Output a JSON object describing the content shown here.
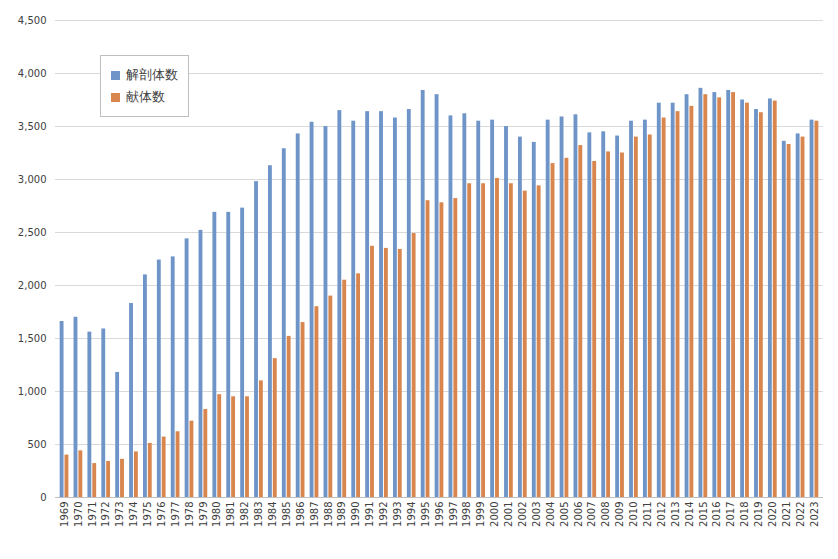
{
  "chart_data": {
    "type": "bar",
    "categories": [
      "1969",
      "1970",
      "1971",
      "1972",
      "1973",
      "1974",
      "1975",
      "1976",
      "1977",
      "1978",
      "1979",
      "1980",
      "1981",
      "1982",
      "1983",
      "1984",
      "1985",
      "1986",
      "1987",
      "1988",
      "1989",
      "1990",
      "1991",
      "1992",
      "1993",
      "1994",
      "1995",
      "1996",
      "1997",
      "1998",
      "1999",
      "2000",
      "2001",
      "2002",
      "2003",
      "2004",
      "2005",
      "2006",
      "2007",
      "2008",
      "2009",
      "2010",
      "2011",
      "2012",
      "2013",
      "2014",
      "2015",
      "2016",
      "2017",
      "2018",
      "2019",
      "2020",
      "2021",
      "2022",
      "2023"
    ],
    "series": [
      {
        "name": "解剖体数",
        "color": "#6f95c8",
        "values": [
          1660,
          1700,
          1560,
          1590,
          1180,
          1830,
          2100,
          2240,
          2270,
          2440,
          2520,
          2690,
          2690,
          2730,
          2980,
          3130,
          3290,
          3430,
          3540,
          3500,
          3650,
          3550,
          3640,
          3640,
          3580,
          3660,
          3840,
          3800,
          3600,
          3620,
          3550,
          3560,
          3500,
          3400,
          3350,
          3560,
          3590,
          3610,
          3440,
          3450,
          3410,
          3550,
          3560,
          3720,
          3720,
          3800,
          3860,
          3820,
          3840,
          3750,
          3660,
          3760,
          3360,
          3430,
          3560
        ]
      },
      {
        "name": "献体数",
        "color": "#d8864e",
        "values": [
          400,
          440,
          320,
          340,
          360,
          430,
          510,
          570,
          620,
          720,
          830,
          970,
          950,
          950,
          1100,
          1310,
          1520,
          1650,
          1800,
          1900,
          2050,
          2110,
          2370,
          2350,
          2340,
          2490,
          2800,
          2780,
          2820,
          2960,
          2960,
          3010,
          2960,
          2890,
          2940,
          3150,
          3200,
          3320,
          3170,
          3260,
          3250,
          3400,
          3420,
          3580,
          3640,
          3690,
          3800,
          3770,
          3820,
          3720,
          3630,
          3740,
          3330,
          3400,
          3550
        ]
      }
    ],
    "ylim": [
      0,
      4500
    ],
    "yticks": [
      0,
      500,
      {
        "value": 1000,
        "label": "1,000"
      },
      {
        "value": 1500,
        "label": "1,500"
      },
      {
        "value": 2000,
        "label": "2,000"
      },
      {
        "value": 2500,
        "label": "2,500"
      },
      {
        "value": 3000,
        "label": "3,000"
      },
      {
        "value": 3500,
        "label": "3,500"
      },
      {
        "value": 4000,
        "label": "4,000"
      },
      {
        "value": 4500,
        "label": "4,500"
      }
    ],
    "grid": true,
    "legend": "top-left"
  }
}
